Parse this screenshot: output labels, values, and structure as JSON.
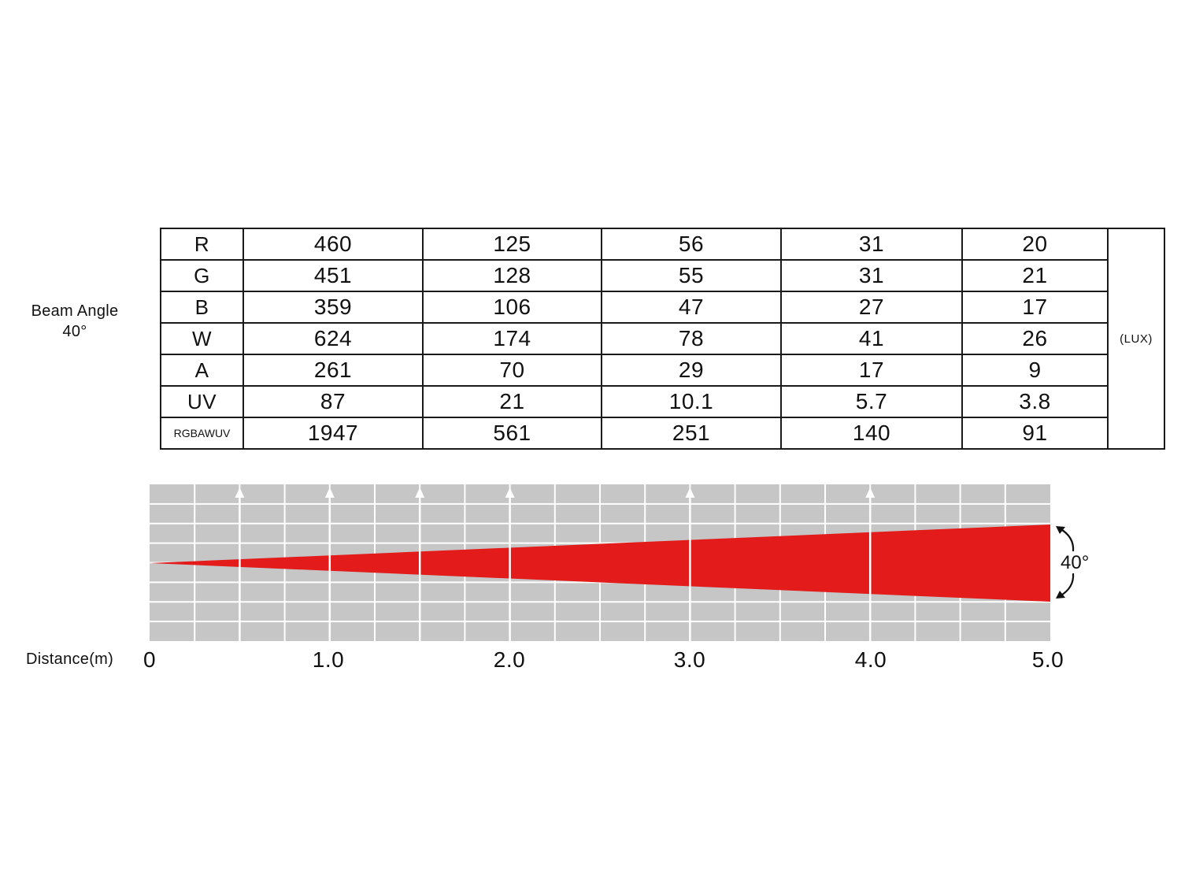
{
  "beam_label": {
    "line1": "Beam Angle",
    "line2": "40°"
  },
  "unit_label": "(LUX)",
  "table": {
    "rows": [
      {
        "channel": "R",
        "values": [
          "460",
          "125",
          "56",
          "31",
          "20"
        ]
      },
      {
        "channel": "G",
        "values": [
          "451",
          "128",
          "55",
          "31",
          "21"
        ]
      },
      {
        "channel": "B",
        "values": [
          "359",
          "106",
          "47",
          "27",
          "17"
        ]
      },
      {
        "channel": "W",
        "values": [
          "624",
          "174",
          "78",
          "41",
          "26"
        ]
      },
      {
        "channel": "A",
        "values": [
          "261",
          "70",
          "29",
          "17",
          "9"
        ]
      },
      {
        "channel": "UV",
        "values": [
          "87",
          "21",
          "10.1",
          "5.7",
          "3.8"
        ]
      },
      {
        "channel": "RGBAWUV",
        "values": [
          "1947",
          "561",
          "251",
          "140",
          "91"
        ]
      }
    ]
  },
  "diagram": {
    "axis_title": "Distance(m)",
    "ticks": [
      "0",
      "1.0",
      "2.0",
      "3.0",
      "4.0",
      "5.0"
    ],
    "tick_values": [
      0,
      1,
      2,
      3,
      4,
      5
    ],
    "measurement_markers_m": [
      0.5,
      1.0,
      1.5,
      2.0,
      3.0,
      4.0
    ],
    "beam_angle_label": "40°",
    "beam_angle_deg": 40,
    "colors": {
      "grid_bg": "#c6c6c6",
      "grid_line": "#ffffff",
      "beam": "#e31b1b",
      "arrow": "#111111"
    }
  }
}
